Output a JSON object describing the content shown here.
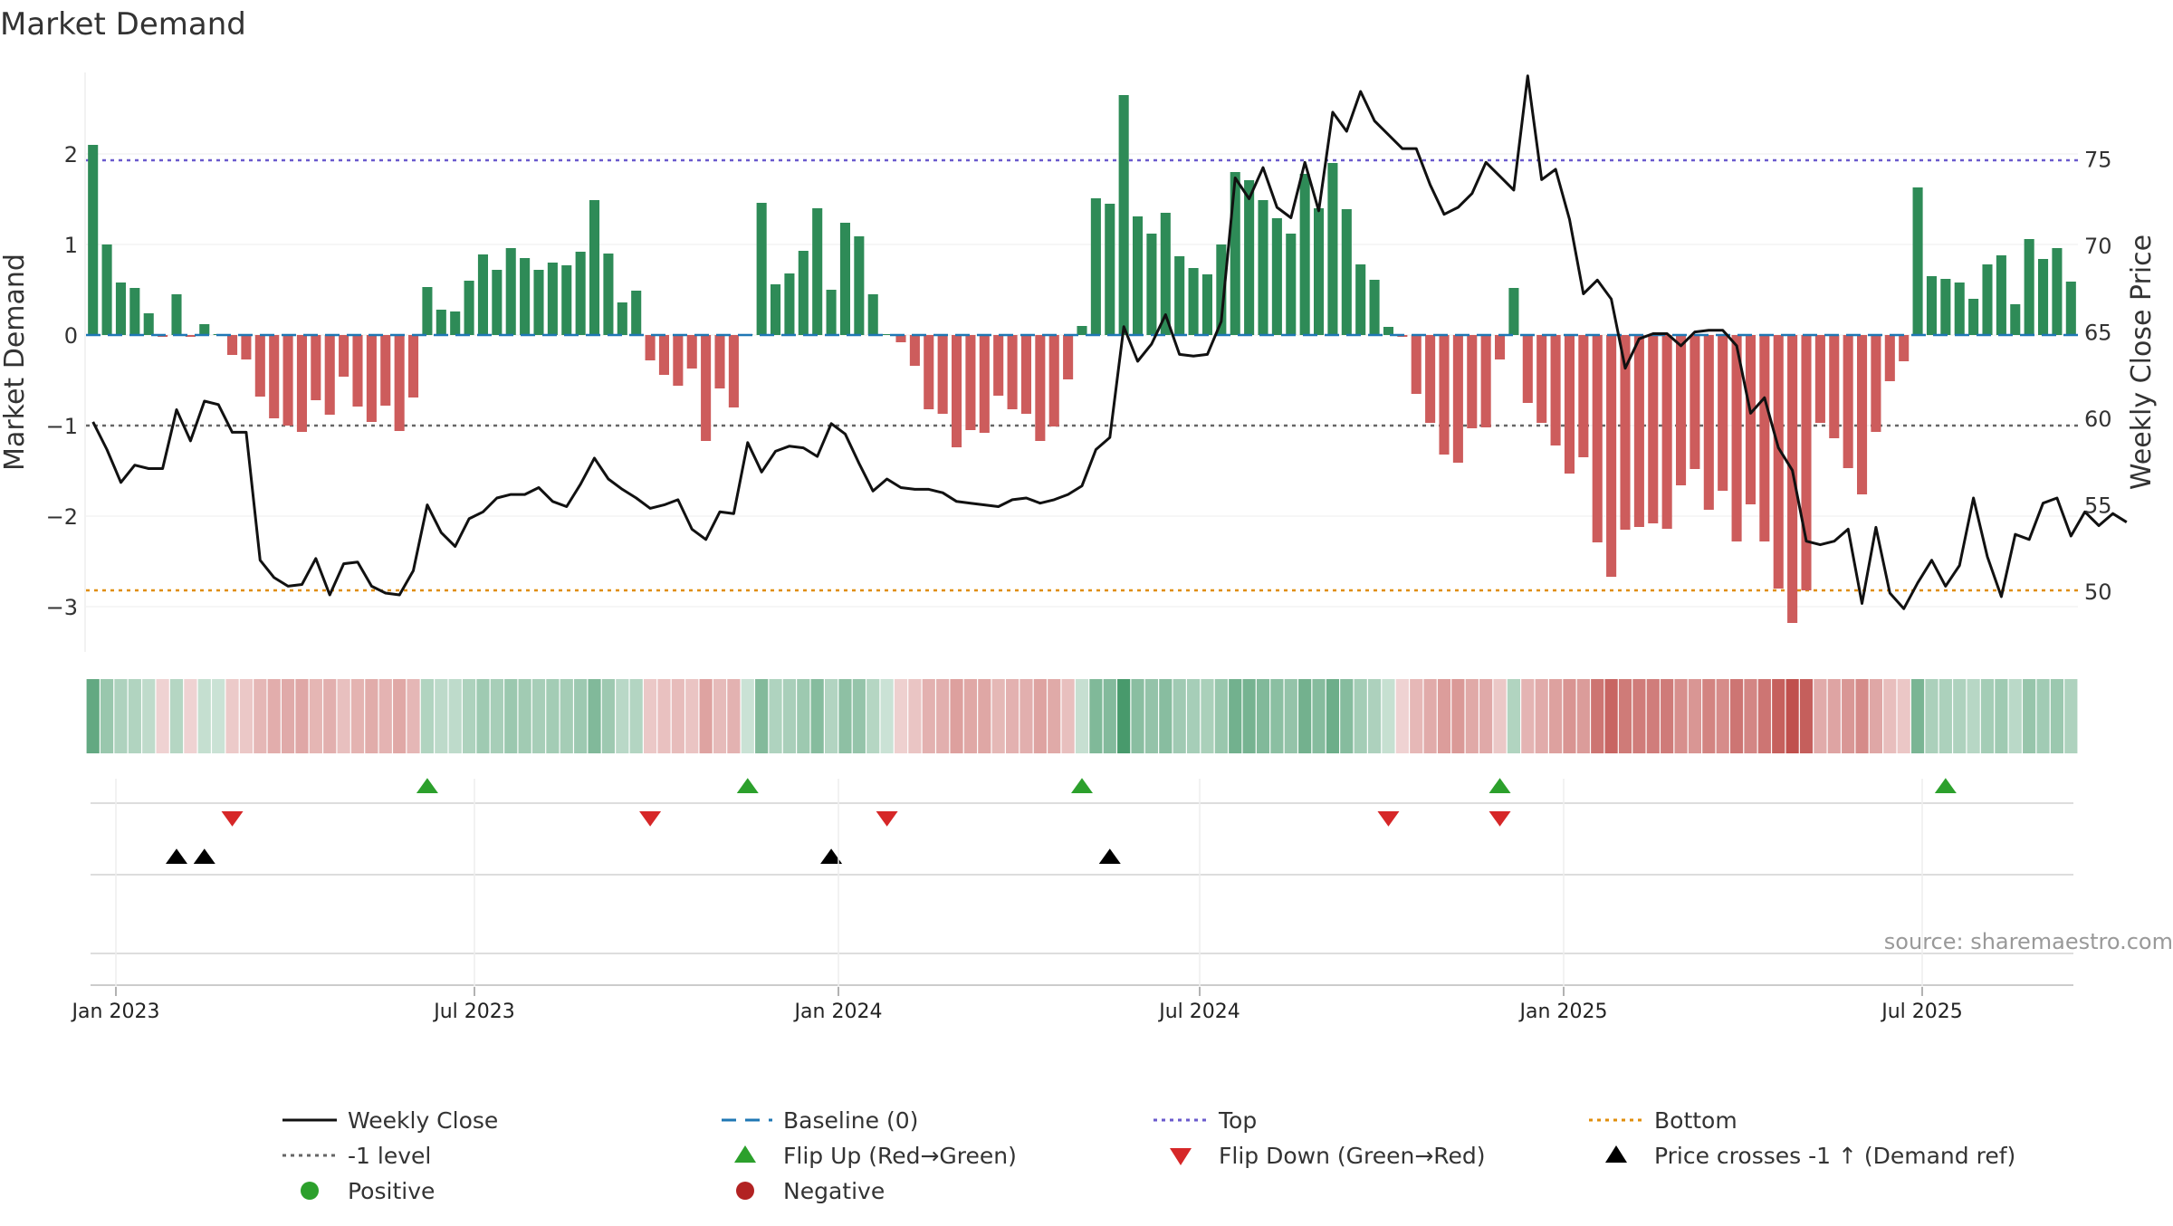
{
  "chart_data": {
    "type": "bar",
    "title": "Market Demand",
    "ylabel_left": "Market Demand",
    "ylabel_right": "Weekly Close Price",
    "ylim_left": [
      -3.5,
      2.9
    ],
    "ylim_right": [
      46.5,
      80
    ],
    "yticks_left": [
      -3,
      -2,
      -1,
      0,
      1,
      2
    ],
    "yticks_left_labels": [
      "−3",
      "−2",
      "−1",
      "0",
      "1",
      "2"
    ],
    "yticks_right": [
      50,
      55,
      60,
      65,
      70,
      75
    ],
    "xticks": [
      "Jan 2023",
      "Jul 2023",
      "Jan 2024",
      "Jul 2024",
      "Jan 2025",
      "Jul 2025"
    ],
    "top_level": 1.93,
    "bottom_level": -2.82,
    "ref_level": -1,
    "demand": [
      2.1,
      1.0,
      0.58,
      0.52,
      0.24,
      -0.02,
      0.45,
      -0.02,
      0.12,
      0.01,
      -0.22,
      -0.27,
      -0.68,
      -0.92,
      -1.0,
      -1.07,
      -0.72,
      -0.88,
      -0.46,
      -0.79,
      -0.96,
      -0.78,
      -1.06,
      -0.69,
      0.53,
      0.28,
      0.26,
      0.6,
      0.89,
      0.72,
      0.96,
      0.85,
      0.72,
      0.8,
      0.77,
      0.92,
      1.49,
      0.9,
      0.36,
      0.49,
      -0.28,
      -0.44,
      -0.56,
      -0.37,
      -1.17,
      -0.59,
      -0.8,
      0.01,
      1.46,
      0.56,
      0.68,
      0.93,
      1.4,
      0.5,
      1.24,
      1.09,
      0.45,
      0.01,
      -0.08,
      -0.34,
      -0.82,
      -0.87,
      -1.24,
      -1.05,
      -1.08,
      -0.67,
      -0.82,
      -0.87,
      -1.17,
      -1.01,
      -0.49,
      0.1,
      1.51,
      1.45,
      2.65,
      1.31,
      1.12,
      1.35,
      0.87,
      0.74,
      0.67,
      1.0,
      1.8,
      1.71,
      1.49,
      1.29,
      1.12,
      1.78,
      1.4,
      1.9,
      1.39,
      0.78,
      0.61,
      0.09,
      -0.02,
      -0.65,
      -0.97,
      -1.32,
      -1.41,
      -1.03,
      -1.02,
      -0.27,
      0.52,
      -0.75,
      -0.97,
      -1.22,
      -1.53,
      -1.35,
      -2.29,
      -2.67,
      -2.15,
      -2.12,
      -2.08,
      -2.14,
      -1.66,
      -1.48,
      -1.93,
      -1.72,
      -2.28,
      -1.87,
      -2.28,
      -2.8,
      -3.18,
      -2.82,
      -0.97,
      -1.14,
      -1.47,
      -1.76,
      -1.07,
      -0.51,
      -0.29,
      1.63,
      0.65,
      0.62,
      0.58,
      0.4,
      0.78,
      0.88,
      0.34,
      1.06,
      0.84,
      0.96,
      0.59
    ],
    "weekly_close": [
      59.8,
      58.2,
      56.3,
      57.3,
      57.1,
      57.1,
      60.5,
      58.7,
      61.0,
      60.8,
      59.2,
      59.2,
      51.8,
      50.8,
      50.3,
      50.4,
      51.9,
      49.8,
      51.6,
      51.7,
      50.3,
      49.9,
      49.8,
      51.2,
      55.0,
      53.4,
      52.6,
      54.2,
      54.6,
      55.4,
      55.6,
      55.6,
      56.0,
      55.2,
      54.9,
      56.2,
      57.7,
      56.5,
      55.9,
      55.4,
      54.8,
      55.0,
      55.3,
      53.6,
      53.0,
      54.6,
      54.5,
      58.6,
      56.9,
      58.1,
      58.4,
      58.3,
      57.8,
      59.7,
      59.1,
      57.4,
      55.8,
      56.5,
      56.0,
      55.9,
      55.9,
      55.7,
      55.2,
      55.1,
      55.0,
      54.9,
      55.3,
      55.4,
      55.1,
      55.3,
      55.6,
      56.1,
      58.2,
      58.9,
      65.3,
      63.3,
      64.3,
      66.0,
      63.7,
      63.6,
      63.7,
      65.6,
      73.9,
      72.7,
      74.5,
      72.2,
      71.6,
      74.8,
      72.0,
      77.7,
      76.6,
      78.9,
      77.2,
      76.4,
      75.6,
      75.6,
      73.5,
      71.8,
      72.2,
      73.0,
      74.8,
      74.0,
      73.2,
      79.8,
      73.8,
      74.4,
      71.5,
      67.2,
      68.0,
      66.9,
      62.9,
      64.6,
      64.9,
      64.9,
      64.2,
      65.0,
      65.1,
      65.1,
      64.2,
      60.3,
      61.2,
      58.3,
      57.0,
      52.9,
      52.7,
      52.9,
      53.6,
      49.3,
      53.7,
      49.9,
      49.0,
      50.5,
      51.8,
      50.3,
      51.5,
      55.4,
      52.0,
      49.7,
      53.3,
      53.0,
      55.1,
      55.4,
      53.2,
      54.6,
      53.8,
      54.5,
      54.0
    ],
    "flip_up_weeks": [
      24,
      47,
      71,
      101,
      133
    ],
    "flip_down_weeks": [
      10,
      40,
      57,
      93,
      101
    ],
    "price_cross_weeks": [
      6,
      8,
      53,
      73
    ],
    "legend": [
      {
        "label": "Weekly Close",
        "kind": "line",
        "color": "#111111"
      },
      {
        "label": "Baseline (0)",
        "kind": "dash",
        "color": "#1f77b4"
      },
      {
        "label": "Top",
        "kind": "dot",
        "color": "#6a5acd"
      },
      {
        "label": "Bottom",
        "kind": "dot",
        "color": "#e08e0b"
      },
      {
        "label": "-1 level",
        "kind": "dot",
        "color": "#666666"
      },
      {
        "label": "Flip Up (Red→Green)",
        "kind": "tri-up",
        "color": "#2ca02c"
      },
      {
        "label": "Flip Down (Green→Red)",
        "kind": "tri-down",
        "color": "#d62728"
      },
      {
        "label": "Price crosses -1 ↑ (Demand ref)",
        "kind": "tri-up",
        "color": "#000000"
      },
      {
        "label": "Positive",
        "kind": "dot-circle",
        "color": "#2ca02c"
      },
      {
        "label": "Negative",
        "kind": "dot-circle",
        "color": "#b22222"
      }
    ],
    "source_note": "source: sharemaestro.com"
  },
  "colors": {
    "positive": "#2e8b57",
    "negative": "#cd5c5c",
    "line": "#111111",
    "top": "#6a5acd",
    "bottom": "#e08e0b",
    "ref": "#666666",
    "baseline": "#1f77b4"
  }
}
